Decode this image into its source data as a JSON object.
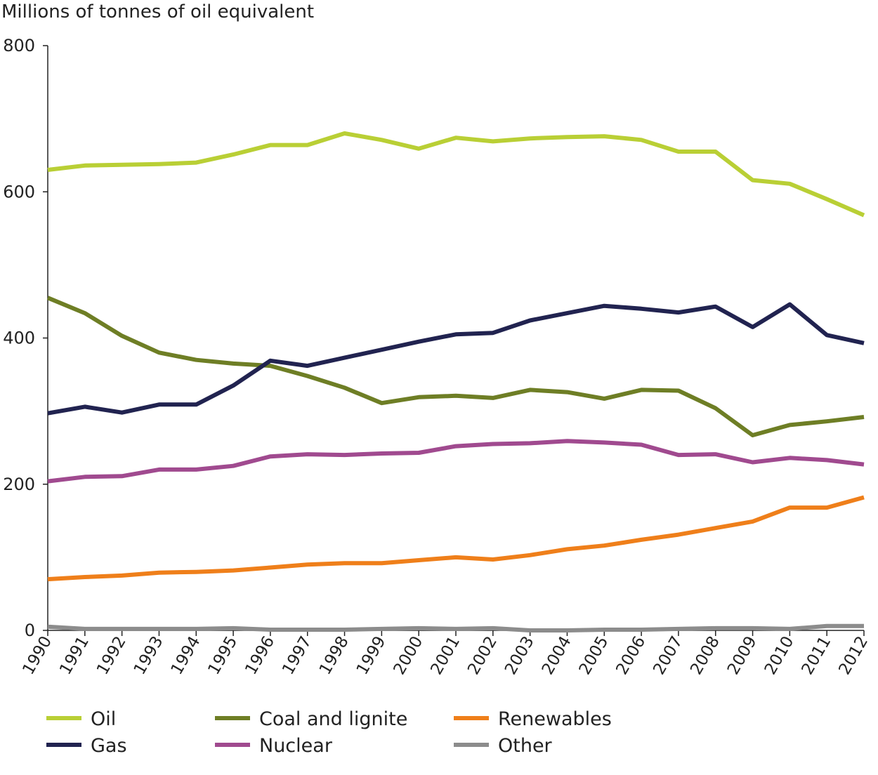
{
  "chart_data": {
    "type": "line",
    "title": "",
    "ylabel": "Millions of tonnes of oil equivalent",
    "xlabel": "",
    "ylim": [
      0,
      800
    ],
    "yticks": [
      0,
      200,
      400,
      600,
      800
    ],
    "grid": false,
    "legend_position": "bottom",
    "x": [
      "1990",
      "1991",
      "1992",
      "1993",
      "1994",
      "1995",
      "1996",
      "1997",
      "1998",
      "1999",
      "2000",
      "2001",
      "2002",
      "2003",
      "2004",
      "2005",
      "2006",
      "2007",
      "2008",
      "2009",
      "2010",
      "2011",
      "2012"
    ],
    "series": [
      {
        "name": "Oil",
        "color": "#b9cf35",
        "values": [
          630,
          636,
          637,
          638,
          640,
          651,
          664,
          664,
          680,
          671,
          659,
          674,
          669,
          673,
          675,
          676,
          671,
          655,
          655,
          616,
          611,
          590,
          568
        ]
      },
      {
        "name": "Coal and lignite",
        "color": "#6e7e25",
        "values": [
          455,
          434,
          403,
          380,
          370,
          365,
          362,
          348,
          332,
          311,
          319,
          321,
          318,
          329,
          326,
          317,
          329,
          328,
          304,
          267,
          281,
          286,
          292
        ]
      },
      {
        "name": "Renewables",
        "color": "#ef7f1a",
        "values": [
          70,
          73,
          75,
          79,
          80,
          82,
          86,
          90,
          92,
          92,
          96,
          100,
          97,
          103,
          111,
          116,
          124,
          131,
          140,
          149,
          168,
          168,
          182
        ]
      },
      {
        "name": "Gas",
        "color": "#212350",
        "values": [
          297,
          306,
          298,
          309,
          309,
          335,
          369,
          362,
          373,
          384,
          395,
          405,
          407,
          424,
          434,
          444,
          440,
          435,
          443,
          415,
          446,
          404,
          393
        ]
      },
      {
        "name": "Nuclear",
        "color": "#a04a8f",
        "values": [
          204,
          210,
          211,
          220,
          220,
          225,
          238,
          241,
          240,
          242,
          243,
          252,
          255,
          256,
          259,
          257,
          254,
          240,
          241,
          230,
          236,
          233,
          227
        ]
      },
      {
        "name": "Other",
        "color": "#8c8c8c",
        "values": [
          5,
          2,
          2,
          2,
          2,
          3,
          1,
          1,
          1,
          2,
          3,
          2,
          3,
          0,
          0,
          1,
          1,
          2,
          3,
          3,
          2,
          6,
          6
        ]
      }
    ]
  }
}
